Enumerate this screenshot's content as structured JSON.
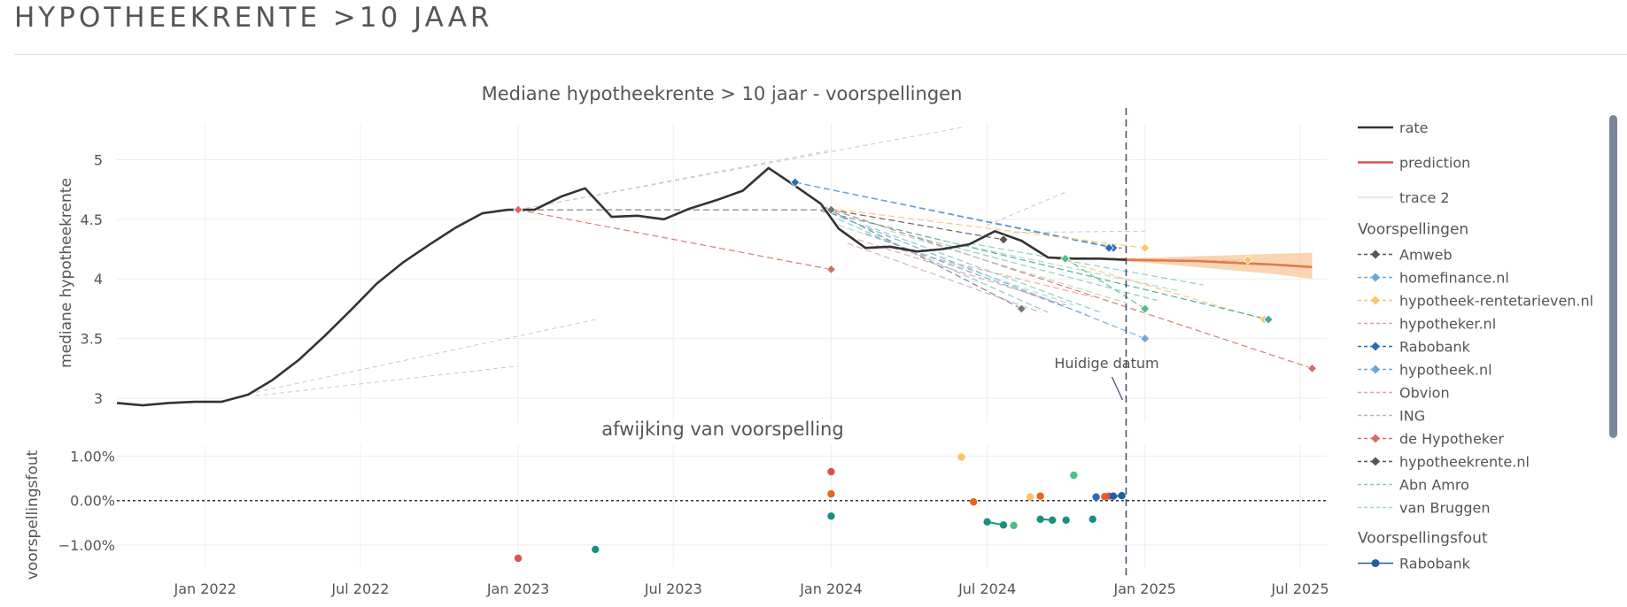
{
  "page": {
    "title": "HYPOTHEEKRENTE >10 JAAR"
  },
  "chart_data": {
    "type": "line",
    "top_panel": {
      "title": "Mediane hypotheekrente > 10 jaar - voorspellingen",
      "ylabel": "mediane hypotheekrente",
      "ylim": [
        2.8,
        5.3
      ],
      "yticks": [
        3,
        3.5,
        4,
        4.5,
        5
      ],
      "ytick_labels": [
        "3",
        "3.5",
        "4",
        "4.5",
        "5"
      ]
    },
    "bottom_panel": {
      "title": "afwijking van voorspelling",
      "ylabel": "voorspellingsfout",
      "ylim": [
        -1.5,
        1.25
      ],
      "yticks": [
        1,
        0,
        -1
      ],
      "ytick_labels": [
        "1.00%",
        "0.00%",
        "−1.00%"
      ]
    },
    "x_axis": {
      "range": [
        "2021-09-20",
        "2025-08-01"
      ],
      "ticks": [
        "2022-01-01",
        "2022-07-01",
        "2023-01-01",
        "2023-07-01",
        "2024-01-01",
        "2024-07-01",
        "2025-01-01",
        "2025-07-01"
      ],
      "tick_labels": [
        "Jan 2022",
        "Jul 2022",
        "Jan 2023",
        "Jul 2023",
        "Jan 2024",
        "Jul 2024",
        "Jan 2025",
        "Jul 2025"
      ]
    },
    "current_date": {
      "date": "2024-12-10",
      "label": "Huidige datum"
    },
    "rate": {
      "name": "rate",
      "color": "#333333",
      "points": [
        [
          "2021-09-20",
          2.96
        ],
        [
          "2021-10-20",
          2.94
        ],
        [
          "2021-11-20",
          2.96
        ],
        [
          "2021-12-20",
          2.97
        ],
        [
          "2022-01-20",
          2.97
        ],
        [
          "2022-02-20",
          3.03
        ],
        [
          "2022-03-20",
          3.15
        ],
        [
          "2022-04-20",
          3.32
        ],
        [
          "2022-05-20",
          3.52
        ],
        [
          "2022-06-20",
          3.74
        ],
        [
          "2022-07-20",
          3.96
        ],
        [
          "2022-08-20",
          4.14
        ],
        [
          "2022-09-20",
          4.29
        ],
        [
          "2022-10-20",
          4.43
        ],
        [
          "2022-11-20",
          4.55
        ],
        [
          "2022-12-20",
          4.58
        ],
        [
          "2023-01-20",
          4.58
        ],
        [
          "2023-02-20",
          4.69
        ],
        [
          "2023-03-20",
          4.76
        ],
        [
          "2023-04-20",
          4.52
        ],
        [
          "2023-05-20",
          4.53
        ],
        [
          "2023-06-20",
          4.5
        ],
        [
          "2023-07-20",
          4.59
        ],
        [
          "2023-08-20",
          4.66
        ],
        [
          "2023-09-20",
          4.74
        ],
        [
          "2023-10-20",
          4.93
        ],
        [
          "2023-11-20",
          4.78
        ],
        [
          "2023-12-20",
          4.63
        ],
        [
          "2024-01-10",
          4.42
        ],
        [
          "2024-02-10",
          4.26
        ],
        [
          "2024-03-10",
          4.27
        ],
        [
          "2024-04-10",
          4.23
        ],
        [
          "2024-05-10",
          4.25
        ],
        [
          "2024-06-10",
          4.29
        ],
        [
          "2024-07-10",
          4.4
        ],
        [
          "2024-08-10",
          4.32
        ],
        [
          "2024-09-10",
          4.18
        ],
        [
          "2024-10-10",
          4.17
        ],
        [
          "2024-11-10",
          4.17
        ],
        [
          "2024-12-10",
          4.16
        ]
      ]
    },
    "prediction": {
      "name": "prediction",
      "color": "#e07a4f",
      "band_color": "#f7c79a",
      "points": [
        [
          "2024-12-10",
          4.16
        ],
        [
          "2025-03-01",
          4.15
        ],
        [
          "2025-06-01",
          4.12
        ],
        [
          "2025-07-15",
          4.1
        ]
      ],
      "upper": [
        [
          "2024-12-10",
          4.17
        ],
        [
          "2025-03-01",
          4.19
        ],
        [
          "2025-06-01",
          4.21
        ],
        [
          "2025-07-15",
          4.22
        ]
      ],
      "lower": [
        [
          "2024-12-10",
          4.15
        ],
        [
          "2025-03-01",
          4.1
        ],
        [
          "2025-06-01",
          4.04
        ],
        [
          "2025-07-15",
          4.0
        ]
      ]
    },
    "trace2": {
      "name": "trace 2",
      "color": "#c8c8c8",
      "segments": [
        [
          [
            "2022-03-01",
            3.02
          ],
          [
            "2023-01-01",
            3.27
          ]
        ],
        [
          [
            "2022-03-01",
            3.05
          ],
          [
            "2023-04-01",
            3.66
          ]
        ],
        [
          [
            "2023-01-01",
            4.58
          ],
          [
            "2024-01-01",
            5.08
          ]
        ],
        [
          [
            "2023-01-01",
            4.58
          ],
          [
            "2024-06-01",
            5.27
          ]
        ],
        [
          [
            "2024-07-01",
            4.45
          ],
          [
            "2024-10-01",
            4.73
          ]
        ],
        [
          [
            "2024-08-01",
            4.39
          ],
          [
            "2025-01-01",
            4.4
          ]
        ]
      ]
    },
    "legend_groups": [
      {
        "title": "",
        "items": [
          {
            "label": "rate",
            "color": "#333333",
            "style": "solid",
            "marker": "none"
          },
          {
            "label": "prediction",
            "color": "#d9534f",
            "style": "solid",
            "marker": "none"
          },
          {
            "label": "trace 2",
            "color": "#eaeaea",
            "style": "solid",
            "marker": "none"
          }
        ]
      },
      {
        "title": "Voorspellingen",
        "items": [
          {
            "label": "Amweb",
            "color": "#555555",
            "style": "dash",
            "marker": "diamond"
          },
          {
            "label": "homefinance.nl",
            "color": "#6ea6d8",
            "style": "dash",
            "marker": "diamond"
          },
          {
            "label": "hypotheek-rentetarieven.nl",
            "color": "#f9c46b",
            "style": "dash",
            "marker": "diamond"
          },
          {
            "label": "hypotheker.nl",
            "color": "#e6a3a0",
            "style": "dash",
            "marker": "none"
          },
          {
            "label": "Rabobank",
            "color": "#2a6db6",
            "style": "dash",
            "marker": "diamond"
          },
          {
            "label": "hypotheek.nl",
            "color": "#6ea6d8",
            "style": "dash",
            "marker": "diamond"
          },
          {
            "label": "Obvion",
            "color": "#d9a3b5",
            "style": "dash",
            "marker": "none"
          },
          {
            "label": "ING",
            "color": "#c7a9d0",
            "style": "dash",
            "marker": "none"
          },
          {
            "label": "de Hypotheker",
            "color": "#d46e66",
            "style": "dash",
            "marker": "diamond"
          },
          {
            "label": "hypotheekrente.nl",
            "color": "#555555",
            "style": "dash",
            "marker": "diamond"
          },
          {
            "label": "Abn Amro",
            "color": "#7ecac0",
            "style": "dash",
            "marker": "none"
          },
          {
            "label": "van Bruggen",
            "color": "#a8d8c0",
            "style": "dash",
            "marker": "none"
          }
        ]
      },
      {
        "title": "Voorspellingsfout",
        "items": [
          {
            "label": "Rabobank",
            "color": "#1f5fa8",
            "style": "solid",
            "marker": "circle"
          }
        ]
      }
    ],
    "forecasts": [
      {
        "color": "#777777",
        "points": [
          [
            "2023-01-01",
            4.58
          ],
          [
            "2024-01-01",
            4.58
          ]
        ],
        "markers": [
          "2023-01-01",
          "2024-01-01"
        ]
      },
      {
        "color": "#d46e66",
        "points": [
          [
            "2023-01-01",
            4.58
          ],
          [
            "2024-01-01",
            4.08
          ]
        ],
        "markers": [
          "2023-01-01",
          "2024-01-01"
        ]
      },
      {
        "color": "#2a6db6",
        "points": [
          [
            "2023-11-20",
            4.81
          ],
          [
            "2024-11-25",
            4.26
          ]
        ],
        "markers": [
          "2023-11-20",
          "2024-11-25"
        ]
      },
      {
        "color": "#6ea6d8",
        "points": [
          [
            "2023-11-20",
            4.81
          ],
          [
            "2024-12-01",
            4.26
          ]
        ],
        "markers": []
      },
      {
        "color": "#555555",
        "points": [
          [
            "2024-01-01",
            4.58
          ],
          [
            "2024-07-20",
            4.33
          ]
        ],
        "markers": [
          "2024-07-20"
        ]
      },
      {
        "color": "#777777",
        "points": [
          [
            "2023-12-25",
            4.6
          ],
          [
            "2024-08-10",
            3.75
          ]
        ],
        "markers": [
          "2024-08-10"
        ]
      },
      {
        "color": "#f9c46b",
        "points": [
          [
            "2023-12-20",
            4.6
          ],
          [
            "2025-01-01",
            4.26
          ]
        ],
        "markers": [
          "2025-01-01"
        ]
      },
      {
        "color": "#f9c46b",
        "points": [
          [
            "2024-09-15",
            4.18
          ],
          [
            "2025-05-20",
            3.66
          ]
        ],
        "markers": [
          "2025-05-20"
        ]
      },
      {
        "color": "#f9c46b",
        "points": [
          [
            "2024-09-15",
            4.18
          ],
          [
            "2025-05-01",
            4.16
          ]
        ],
        "markers": [
          "2025-05-01"
        ]
      },
      {
        "color": "#d46e66",
        "points": [
          [
            "2023-12-25",
            4.6
          ],
          [
            "2025-07-15",
            3.25
          ]
        ],
        "markers": [
          "2025-07-15"
        ]
      },
      {
        "color": "#6ea6d8",
        "points": [
          [
            "2024-01-01",
            4.55
          ],
          [
            "2025-01-01",
            3.5
          ]
        ],
        "markers": [
          "2025-01-01"
        ]
      },
      {
        "color": "#3aa89a",
        "points": [
          [
            "2023-12-20",
            4.57
          ],
          [
            "2025-05-25",
            3.66
          ]
        ],
        "markers": [
          "2025-05-25"
        ]
      },
      {
        "color": "#4fbf87",
        "points": [
          [
            "2024-09-30",
            4.17
          ],
          [
            "2025-01-01",
            3.75
          ]
        ],
        "markers": [
          "2024-09-30",
          "2025-01-01"
        ]
      },
      {
        "color": "#7ecac0",
        "points": [
          [
            "2024-01-10",
            4.5
          ],
          [
            "2024-09-10",
            3.72
          ]
        ],
        "markers": []
      },
      {
        "color": "#a8d8c0",
        "points": [
          [
            "2024-01-10",
            4.45
          ],
          [
            "2024-10-10",
            3.78
          ]
        ],
        "markers": []
      },
      {
        "color": "#7ecac0",
        "points": [
          [
            "2024-02-10",
            4.45
          ],
          [
            "2024-11-10",
            3.72
          ]
        ],
        "markers": []
      },
      {
        "color": "#a8d8c0",
        "points": [
          [
            "2024-03-10",
            4.4
          ],
          [
            "2024-12-10",
            3.8
          ]
        ],
        "markers": []
      },
      {
        "color": "#6ea6d8",
        "points": [
          [
            "2024-02-10",
            4.38
          ],
          [
            "2024-10-25",
            3.7
          ]
        ],
        "markers": []
      },
      {
        "color": "#7ecac0",
        "points": [
          [
            "2024-04-10",
            4.35
          ],
          [
            "2025-01-15",
            3.82
          ]
        ],
        "markers": []
      },
      {
        "color": "#a8d8c0",
        "points": [
          [
            "2024-05-10",
            4.32
          ],
          [
            "2025-02-10",
            3.9
          ]
        ],
        "markers": []
      },
      {
        "color": "#7ecac0",
        "points": [
          [
            "2024-06-10",
            4.3
          ],
          [
            "2025-03-10",
            3.95
          ]
        ],
        "markers": []
      },
      {
        "color": "#c7a9d0",
        "points": [
          [
            "2024-01-20",
            4.3
          ],
          [
            "2024-09-01",
            3.72
          ]
        ],
        "markers": []
      },
      {
        "color": "#d9a3b5",
        "points": [
          [
            "2024-02-01",
            4.33
          ],
          [
            "2024-10-01",
            3.78
          ]
        ],
        "markers": []
      },
      {
        "color": "#e6a3a0",
        "points": [
          [
            "2024-03-01",
            4.28
          ],
          [
            "2024-11-01",
            3.85
          ]
        ],
        "markers": []
      },
      {
        "color": "#e07a4f",
        "points": [
          [
            "2024-10-01",
            4.17
          ],
          [
            "2025-05-01",
            4.15
          ]
        ],
        "markers": []
      },
      {
        "color": "#2a6db6",
        "points": [
          [
            "2024-11-20",
            4.26
          ],
          [
            "2024-12-05",
            4.26
          ]
        ],
        "markers": [
          "2024-11-20"
        ]
      }
    ],
    "errors": {
      "points": [
        {
          "date": "2023-01-01",
          "value": -1.3,
          "color": "#d9534f"
        },
        {
          "date": "2023-04-01",
          "value": -1.1,
          "color": "#1a8f80"
        },
        {
          "date": "2024-01-01",
          "value": 0.65,
          "color": "#d9534f"
        },
        {
          "date": "2024-01-01",
          "value": 0.15,
          "color": "#e8651a"
        },
        {
          "date": "2024-01-01",
          "value": -0.35,
          "color": "#1a8f80"
        },
        {
          "date": "2024-06-01",
          "value": 0.98,
          "color": "#f9c46b"
        },
        {
          "date": "2024-06-15",
          "value": -0.03,
          "color": "#e8651a"
        },
        {
          "date": "2024-07-01",
          "value": -0.48,
          "color": "#1a8f80"
        },
        {
          "date": "2024-07-20",
          "value": -0.55,
          "color": "#1a8f80"
        },
        {
          "date": "2024-08-01",
          "value": -0.56,
          "color": "#4fbf87"
        },
        {
          "date": "2024-08-20",
          "value": 0.08,
          "color": "#f9c46b"
        },
        {
          "date": "2024-09-01",
          "value": 0.1,
          "color": "#e8651a"
        },
        {
          "date": "2024-09-01",
          "value": -0.42,
          "color": "#1a8f80"
        },
        {
          "date": "2024-09-15",
          "value": -0.44,
          "color": "#1a8f80"
        },
        {
          "date": "2024-10-01",
          "value": -0.44,
          "color": "#1a8f80"
        },
        {
          "date": "2024-10-10",
          "value": 0.57,
          "color": "#4fbf87"
        },
        {
          "date": "2024-11-01",
          "value": -0.42,
          "color": "#1a8f80"
        },
        {
          "date": "2024-11-05",
          "value": 0.08,
          "color": "#2a6db6"
        },
        {
          "date": "2024-11-15",
          "value": 0.09,
          "color": "#e8651a"
        },
        {
          "date": "2024-11-20",
          "value": 0.1,
          "color": "#d9534f"
        },
        {
          "date": "2024-11-25",
          "value": 0.1,
          "color": "#1f5fa8"
        },
        {
          "date": "2024-12-05",
          "value": 0.11,
          "color": "#1f5fa8"
        }
      ],
      "lines": [
        {
          "color": "#1a8f80",
          "points": [
            [
              "2024-07-01",
              -0.48
            ],
            [
              "2024-07-20",
              -0.55
            ]
          ]
        },
        {
          "color": "#1a8f80",
          "points": [
            [
              "2024-09-01",
              -0.42
            ],
            [
              "2024-09-15",
              -0.44
            ]
          ]
        },
        {
          "color": "#1f5fa8",
          "points": [
            [
              "2024-11-25",
              0.1
            ],
            [
              "2024-12-05",
              0.11
            ]
          ]
        }
      ]
    }
  }
}
